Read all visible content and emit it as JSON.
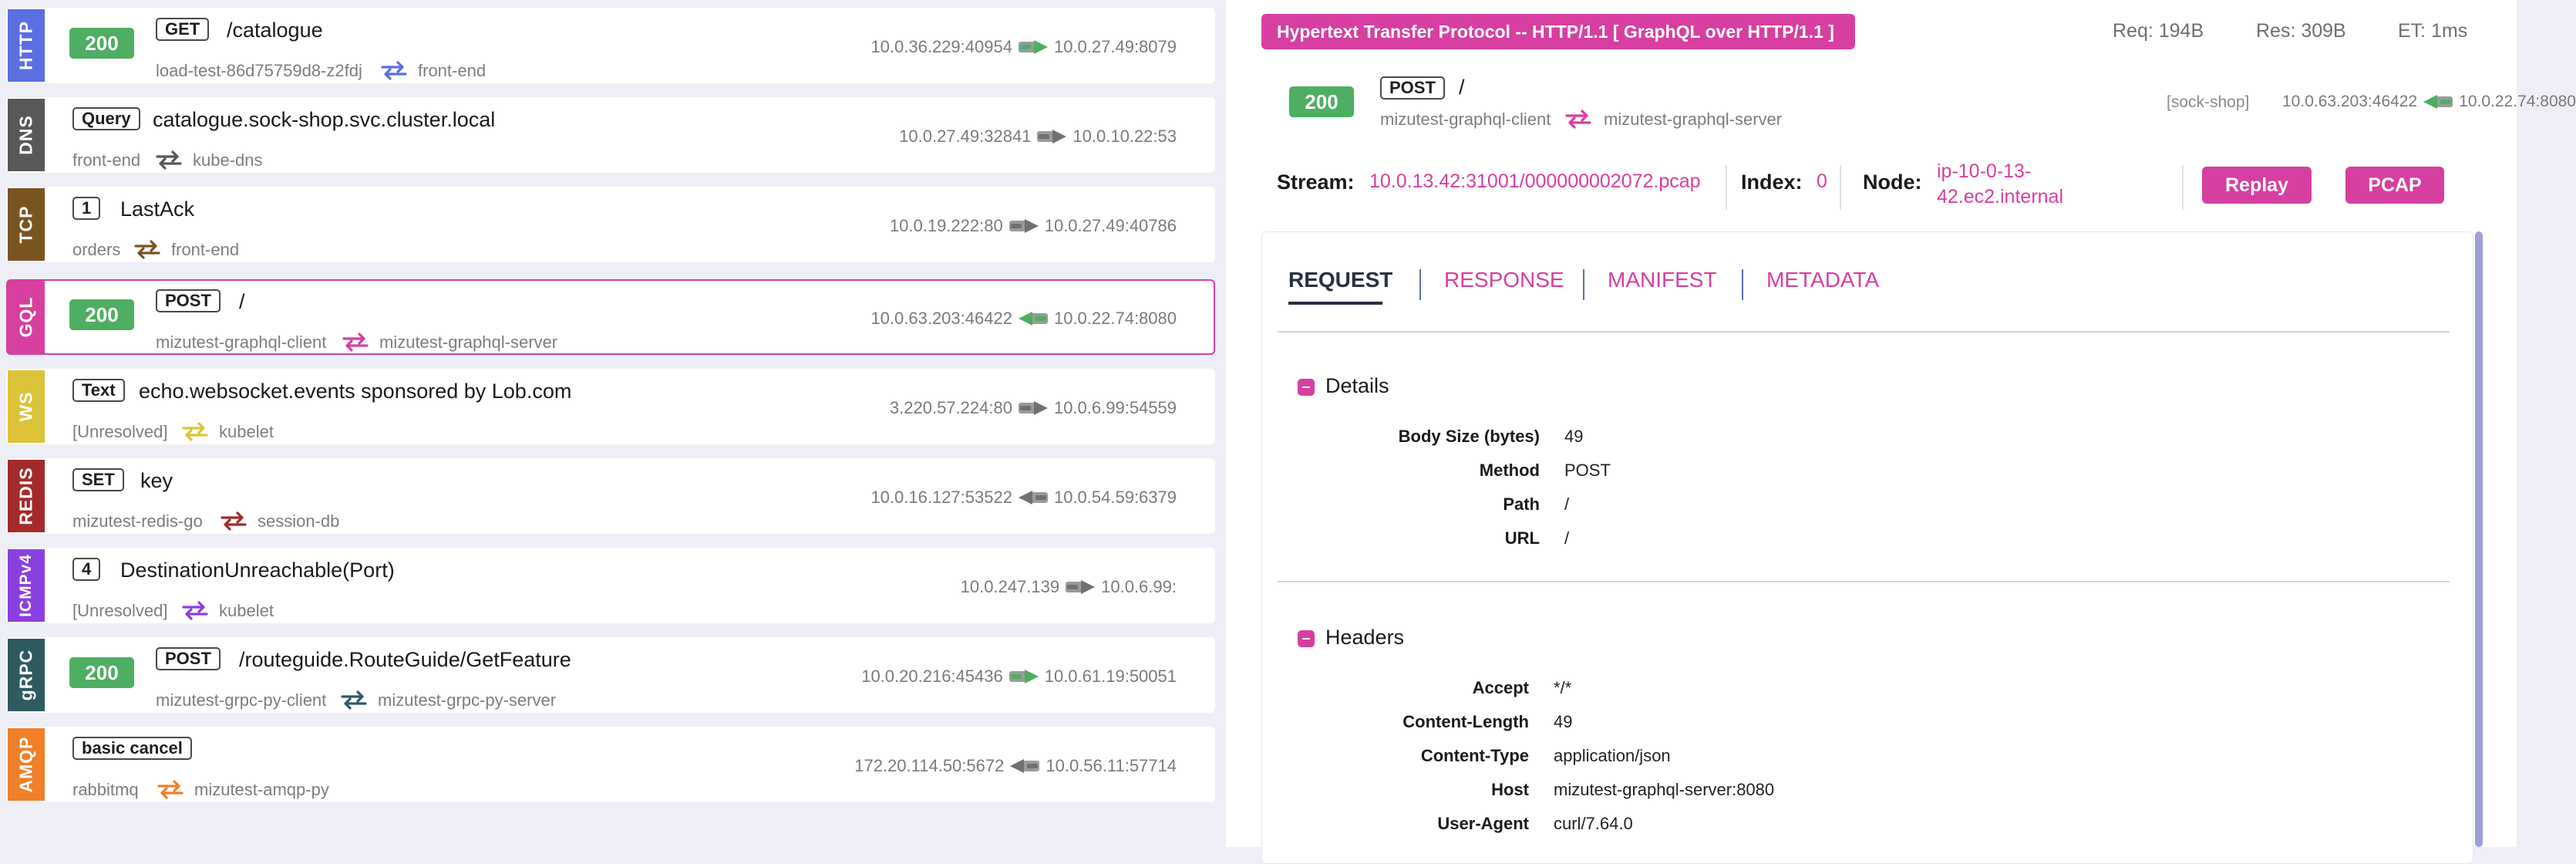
{
  "colors": {
    "accent": "#d63fa0",
    "status_ok": "#4eae62",
    "http": "#5a6fe0",
    "dns": "#585858",
    "tcp": "#7a5420",
    "gql": "#d63fa0",
    "ws": "#dcc33a",
    "redis": "#a52a2a",
    "icmp": "#8c3fe0",
    "grpc": "#2e5a62",
    "amqp": "#f07f2a"
  },
  "entries": [
    {
      "protocol": "HTTP",
      "status": "200",
      "method": "GET",
      "title": "/catalogue",
      "src": "load-test-86d75759d8-z2fdj",
      "dst": "front-end",
      "src_ip": "10.0.36.229:40954",
      "dst_ip": "10.0.27.49:8079"
    },
    {
      "protocol": "DNS",
      "status": "",
      "method": "Query",
      "title": "catalogue.sock-shop.svc.cluster.local",
      "src": "front-end",
      "dst": "kube-dns",
      "src_ip": "10.0.27.49:32841",
      "dst_ip": "10.0.10.22:53"
    },
    {
      "protocol": "TCP",
      "status": "",
      "method": "1",
      "title": "LastAck",
      "src": "orders",
      "dst": "front-end",
      "src_ip": "10.0.19.222:80",
      "dst_ip": "10.0.27.49:40786"
    },
    {
      "protocol": "GQL",
      "status": "200",
      "method": "POST",
      "title": "/",
      "src": "mizutest-graphql-client",
      "dst": "mizutest-graphql-server",
      "src_ip": "10.0.63.203:46422",
      "dst_ip": "10.0.22.74:8080"
    },
    {
      "protocol": "WS",
      "status": "",
      "method": "Text",
      "title": "echo.websocket.events sponsored by Lob.com",
      "src": "[Unresolved]",
      "dst": "kubelet",
      "src_ip": "3.220.57.224:80",
      "dst_ip": "10.0.6.99:54559"
    },
    {
      "protocol": "REDIS",
      "status": "",
      "method": "SET",
      "title": "key",
      "src": "mizutest-redis-go",
      "dst": "session-db",
      "src_ip": "10.0.16.127:53522",
      "dst_ip": "10.0.54.59:6379"
    },
    {
      "protocol": "ICMPv4",
      "status": "",
      "method": "4",
      "title": "DestinationUnreachable(Port)",
      "src": "[Unresolved]",
      "dst": "kubelet",
      "src_ip": "10.0.247.139",
      "dst_ip": "10.0.6.99:"
    },
    {
      "protocol": "gRPC",
      "status": "200",
      "method": "POST",
      "title": "/routeguide.RouteGuide/GetFeature",
      "src": "mizutest-grpc-py-client",
      "dst": "mizutest-grpc-py-server",
      "src_ip": "10.0.20.216:45436",
      "dst_ip": "10.0.61.19:50051"
    },
    {
      "protocol": "AMQP",
      "status": "",
      "method": "basic cancel",
      "title": "",
      "src": "rabbitmq",
      "dst": "mizutest-amqp-py",
      "src_ip": "172.20.114.50:5672",
      "dst_ip": "10.0.56.11:57714"
    }
  ],
  "detail": {
    "protocol_banner": "Hypertext Transfer Protocol -- HTTP/1.1 [ GraphQL over HTTP/1.1 ]",
    "req": "Req: 194B",
    "res": "Res: 309B",
    "et": "ET: 1ms",
    "summary": {
      "status": "200",
      "method": "POST",
      "path": "/",
      "src": "mizutest-graphql-client",
      "dst": "mizutest-graphql-server",
      "namespace": "[sock-shop]",
      "src_ip": "10.0.63.203:46422",
      "dst_ip": "10.0.22.74:8080"
    },
    "stream_label": "Stream:",
    "stream": "10.0.13.42:31001/000000002072.pcap",
    "index_label": "Index:",
    "index": "0",
    "node_label": "Node:",
    "node": "ip-10-0-13-42.ec2.internal",
    "replay_label": "Replay",
    "pcap_label": "PCAP",
    "tabs": [
      "REQUEST",
      "RESPONSE",
      "MANIFEST",
      "METADATA"
    ],
    "details_title": "Details",
    "details": [
      {
        "key": "Body Size (bytes)",
        "value": "49"
      },
      {
        "key": "Method",
        "value": "POST"
      },
      {
        "key": "Path",
        "value": "/"
      },
      {
        "key": "URL",
        "value": "/"
      }
    ],
    "headers_title": "Headers",
    "headers": [
      {
        "key": "Accept",
        "value": "*/*"
      },
      {
        "key": "Content-Length",
        "value": "49"
      },
      {
        "key": "Content-Type",
        "value": "application/json"
      },
      {
        "key": "Host",
        "value": "mizutest-graphql-server:8080"
      },
      {
        "key": "User-Agent",
        "value": "curl/7.64.0"
      }
    ]
  }
}
